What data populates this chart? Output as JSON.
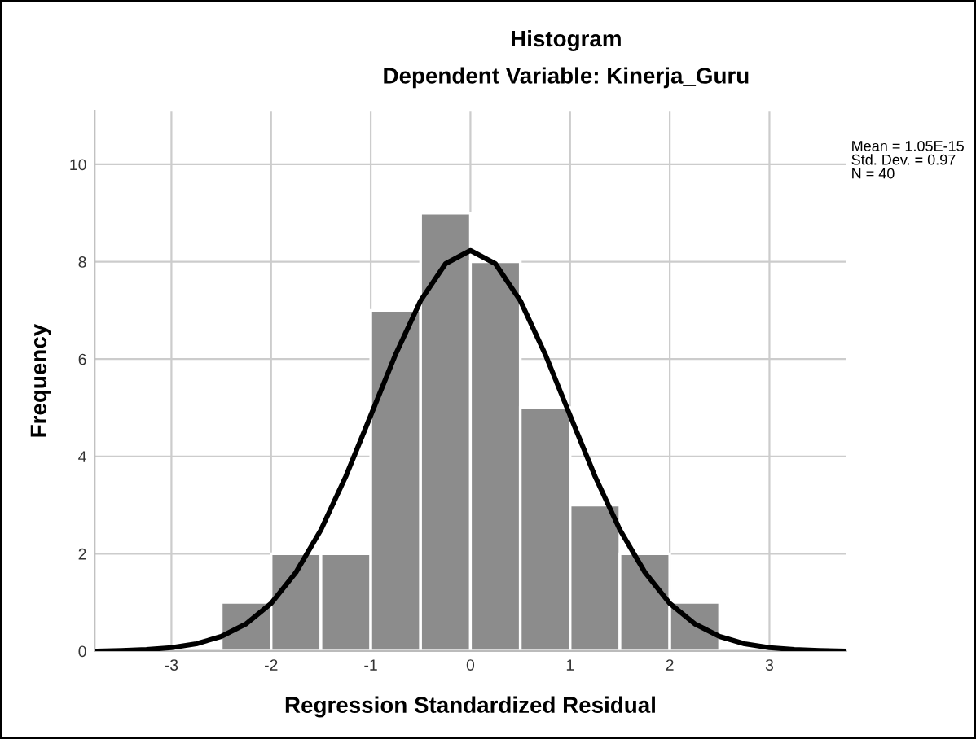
{
  "chart_data": {
    "type": "histogram",
    "title": "Histogram",
    "subtitle": "Dependent Variable: Kinerja_Guru",
    "xlabel": "Regression Standardized Residual",
    "ylabel": "Frequency",
    "series": [
      {
        "bins": [
          -2.5,
          -2.0,
          -1.5,
          -1.0,
          -0.5,
          0.0,
          0.5,
          1.0,
          1.5,
          2.0,
          2.5
        ],
        "values": [
          1,
          2,
          2,
          7,
          9,
          8,
          5,
          3,
          2,
          1
        ],
        "color": "#8c8c8c"
      },
      {
        "type": "line",
        "color": "#000000",
        "x": [
          -3.75,
          -3.5,
          -3.25,
          -3.0,
          -2.75,
          -2.5,
          -2.25,
          -2.0,
          -1.75,
          -1.5,
          -1.25,
          -1.0,
          -0.75,
          -0.5,
          -0.25,
          0.0,
          0.25,
          0.5,
          0.75,
          1.0,
          1.25,
          1.5,
          1.75,
          2.0,
          2.25,
          2.5,
          2.75,
          3.0,
          3.25,
          3.5,
          3.75
        ],
        "values": [
          0.0,
          0.01,
          0.03,
          0.07,
          0.15,
          0.3,
          0.56,
          0.98,
          1.62,
          2.49,
          3.59,
          4.84,
          6.1,
          7.2,
          7.96,
          8.23,
          7.96,
          7.2,
          6.1,
          4.84,
          3.59,
          2.49,
          1.62,
          0.98,
          0.56,
          0.3,
          0.15,
          0.07,
          0.03,
          0.01,
          0.0
        ]
      }
    ],
    "xlim": [
      -3.77,
      3.77
    ],
    "ylim": [
      0,
      11.1
    ],
    "xticks": [
      -3,
      -2,
      -1,
      0,
      1,
      2,
      3
    ],
    "yticks": [
      0,
      2,
      4,
      6,
      8,
      10
    ],
    "grid": true,
    "annotations": [
      "Mean = 1.05E-15",
      "Std. Dev. = 0.97",
      "N = 40"
    ]
  }
}
